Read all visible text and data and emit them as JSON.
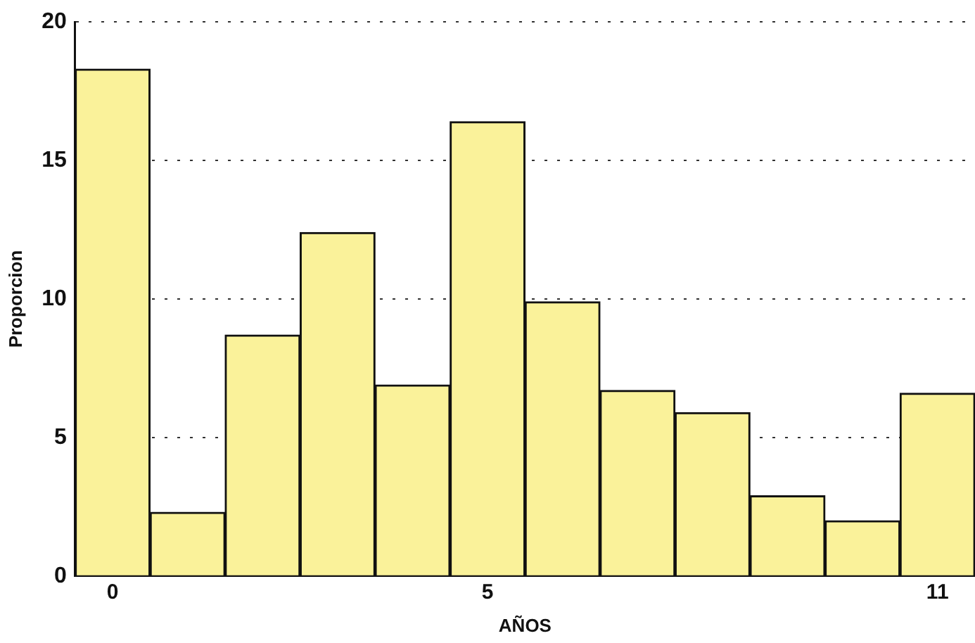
{
  "chart_data": {
    "type": "bar",
    "xlabel": "AÑOS",
    "ylabel": "Proporcion",
    "categories": [
      "0",
      null,
      null,
      null,
      null,
      "5",
      null,
      null,
      null,
      null,
      null,
      "11"
    ],
    "values": [
      18.3,
      2.3,
      8.7,
      12.4,
      6.9,
      16.4,
      9.9,
      6.7,
      5.9,
      2.9,
      2.0,
      6.6
    ],
    "color": "#faf29a",
    "ylim": [
      0,
      20
    ],
    "yticks": [
      0,
      5,
      10,
      15,
      20
    ],
    "grid": "y"
  }
}
